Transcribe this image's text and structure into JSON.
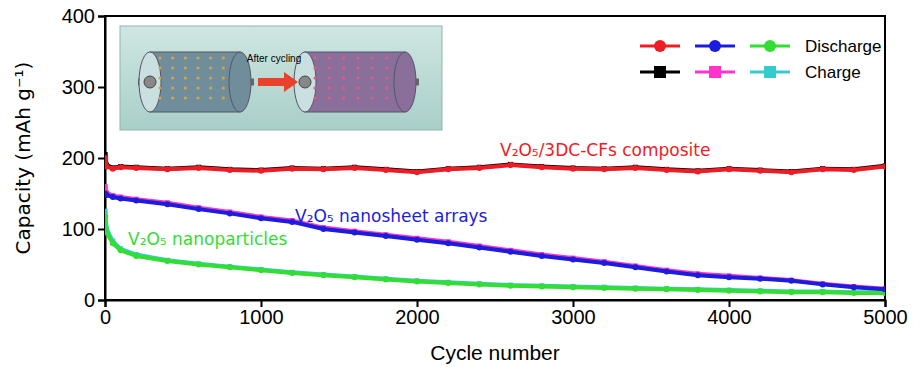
{
  "chart_data": {
    "type": "line",
    "x_label": "Cycle number",
    "y_label": "Capacity (mAh g⁻¹)",
    "xlim": [
      0,
      5000
    ],
    "xticks": [
      0,
      1000,
      2000,
      3000,
      4000,
      5000
    ],
    "ylim": [
      0,
      400
    ],
    "yticks": [
      0,
      100,
      200,
      300,
      400
    ],
    "grid": false,
    "legend": "top-right",
    "legend_labels": [
      "Discharge",
      "Charge"
    ],
    "annotations": [
      "After cycling"
    ],
    "x": [
      1,
      10,
      50,
      100,
      200,
      400,
      600,
      800,
      1000,
      1200,
      1400,
      1600,
      1800,
      2000,
      2200,
      2400,
      2600,
      2800,
      3000,
      3200,
      3400,
      3600,
      3800,
      4000,
      4200,
      4400,
      4600,
      4800,
      5000
    ],
    "series": [
      {
        "name": "V₂O₅/3DC-CFs composite",
        "color": "#ee1c25",
        "marker": "circle",
        "values": [
          200,
          188,
          185,
          187,
          186,
          184,
          186,
          183,
          182,
          185,
          184,
          186,
          183,
          180,
          184,
          186,
          190,
          187,
          185,
          184,
          186,
          183,
          181,
          184,
          182,
          180,
          184,
          183,
          188
        ]
      },
      {
        "name": "V₂O₅ nanosheet arrays",
        "color": "#1c1cdc",
        "marker": "circle",
        "values": [
          150,
          148,
          145,
          143,
          140,
          135,
          128,
          122,
          115,
          110,
          100,
          95,
          90,
          85,
          80,
          74,
          68,
          62,
          57,
          52,
          46,
          40,
          35,
          32,
          30,
          27,
          22,
          18,
          15
        ]
      },
      {
        "name": "V₂O₅ nanoparticles",
        "color": "#33dd33",
        "marker": "circle",
        "values": [
          118,
          95,
          80,
          70,
          62,
          55,
          50,
          46,
          42,
          38,
          35,
          32,
          29,
          26,
          24,
          22,
          20,
          19,
          18,
          17,
          16,
          15,
          14,
          13,
          12,
          11,
          11,
          10,
          10
        ]
      },
      {
        "color": "#000000",
        "marker": "square",
        "values": [
          205,
          190,
          186,
          188,
          187,
          185,
          187,
          184,
          183,
          186,
          185,
          187,
          184,
          181,
          185,
          187,
          191,
          188,
          186,
          185,
          187,
          184,
          182,
          185,
          183,
          181,
          185,
          184,
          189
        ]
      },
      {
        "color": "#ff33cc",
        "marker": "square",
        "values": [
          160,
          151,
          147,
          145,
          142,
          137,
          130,
          124,
          117,
          112,
          102,
          97,
          92,
          87,
          82,
          76,
          70,
          64,
          59,
          54,
          48,
          42,
          37,
          34,
          31,
          28,
          23,
          19,
          16
        ]
      },
      {
        "color": "#33cccc",
        "marker": "square",
        "values": [
          125,
          100,
          83,
          72,
          64,
          56,
          51,
          47,
          43,
          39,
          36,
          33,
          30,
          27,
          25,
          23,
          21,
          20,
          19,
          18,
          17,
          16,
          15,
          14,
          13,
          12,
          12,
          11,
          11
        ]
      }
    ]
  }
}
